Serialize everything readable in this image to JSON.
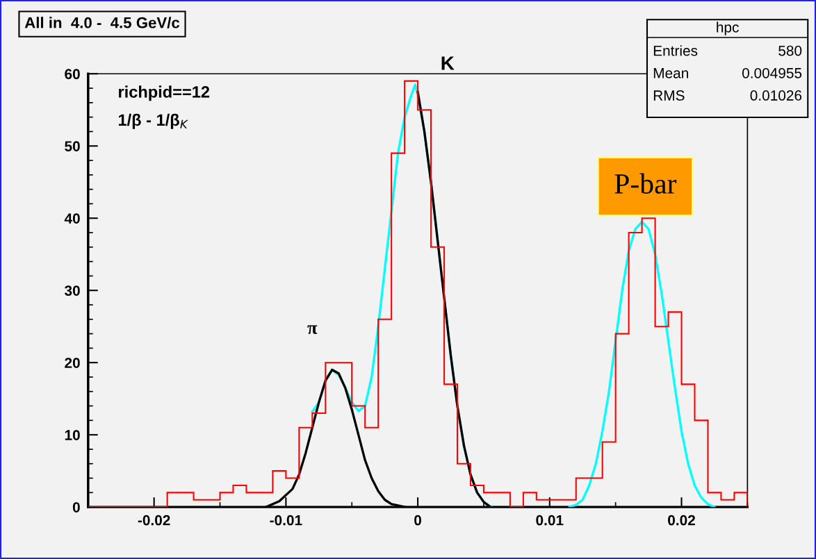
{
  "chart_data": {
    "type": "histogram",
    "title": "All in  4.0 -  4.5 GeV/c",
    "bins": [
      -0.025,
      -0.024,
      -0.023,
      -0.022,
      -0.021,
      -0.02,
      -0.019,
      -0.018,
      -0.017,
      -0.016,
      -0.015,
      -0.014,
      -0.013,
      -0.012,
      -0.011,
      -0.01,
      -0.009,
      -0.008,
      -0.007,
      -0.006,
      -0.005,
      -0.004,
      -0.003,
      -0.002,
      -0.001,
      0,
      0.001,
      0.002,
      0.003,
      0.004,
      0.005,
      0.006,
      0.007,
      0.008,
      0.009,
      0.01,
      0.011,
      0.012,
      0.013,
      0.014,
      0.015,
      0.016,
      0.017,
      0.018,
      0.019,
      0.02,
      0.021,
      0.022,
      0.023,
      0.024,
      0.025
    ],
    "values": [
      0,
      0,
      0,
      0,
      0,
      0,
      2,
      2,
      1,
      1,
      2,
      3,
      2,
      2,
      5,
      4,
      11,
      13,
      20,
      20,
      14,
      11,
      26,
      49,
      59,
      55,
      36,
      17,
      6,
      3,
      2,
      2,
      0,
      2,
      1,
      1,
      1,
      4,
      4,
      9,
      24,
      38,
      40,
      25,
      27,
      17,
      12,
      2,
      1,
      2
    ],
    "color": "#ff0000",
    "series": [
      {
        "type": "line",
        "color": "#00ffff",
        "x": [
          -0.008,
          -0.0075,
          -0.007,
          -0.0065,
          -0.006,
          -0.0055,
          -0.005,
          -0.0045,
          -0.004,
          -0.0035,
          -0.003,
          -0.0025,
          -0.002,
          -0.0015,
          -0.001,
          -0.0005,
          -0.0002,
          0,
          0.0005,
          0.001,
          0.0015,
          0.002,
          0.0025,
          0.003,
          0.0035,
          0.004,
          0.0045,
          0.005,
          0.0055
        ],
        "values": [
          13.2,
          14.5,
          17.5,
          19,
          18.3,
          16.5,
          14.5,
          13.3,
          14,
          18,
          25,
          33,
          41,
          49,
          54,
          57,
          58.5,
          57,
          52,
          45,
          37,
          29,
          21,
          14,
          8.5,
          4.5,
          2,
          0.7,
          0.1
        ]
      },
      {
        "type": "line",
        "color": "#00ffff",
        "x": [
          0.0115,
          0.012,
          0.0125,
          0.013,
          0.0135,
          0.014,
          0.0145,
          0.015,
          0.0155,
          0.016,
          0.0165,
          0.017,
          0.0175,
          0.018,
          0.0185,
          0.019,
          0.0195,
          0.02,
          0.0205,
          0.021,
          0.0215,
          0.022,
          0.0225
        ],
        "values": [
          0,
          0.3,
          1,
          3,
          6,
          10.5,
          16,
          23,
          30,
          35.5,
          38.5,
          39.5,
          38.5,
          35,
          29.5,
          23,
          16.5,
          10.5,
          6,
          3,
          1.3,
          0.4,
          0
        ]
      },
      {
        "type": "line",
        "color": "#000000",
        "x": [
          -0.0115,
          -0.0105,
          -0.0095,
          -0.009,
          -0.0085,
          -0.008,
          -0.0075,
          -0.007,
          -0.0065,
          -0.006,
          -0.0055,
          -0.005,
          -0.0045,
          -0.004,
          -0.0035,
          -0.003,
          -0.0025,
          -0.002,
          -0.001
        ],
        "values": [
          0,
          0.8,
          2.5,
          4.5,
          7.5,
          11,
          14.5,
          17.5,
          19,
          18.5,
          16.5,
          13.5,
          10,
          6.5,
          4,
          2.2,
          1,
          0.4,
          0
        ]
      },
      {
        "type": "line",
        "color": "#000000",
        "x": [
          0,
          0.0005,
          0.001,
          0.0015,
          0.002,
          0.0025,
          0.003,
          0.0035,
          0.004,
          0.0045,
          0.005,
          0.0055
        ],
        "values": [
          57.5,
          52,
          45,
          37,
          29,
          21,
          14,
          8.5,
          4.5,
          2,
          0.7,
          0
        ]
      }
    ],
    "xlim": [
      -0.025,
      0.025
    ],
    "xticks": [
      -0.02,
      -0.01,
      0,
      0.01,
      0.02
    ],
    "ylim": [
      0,
      60
    ],
    "yticks": [
      0,
      10,
      20,
      30,
      40,
      50,
      60
    ],
    "annotations": [
      "richpid==12",
      "1/β - 1/β$_{K}$",
      "K",
      "π",
      "P-bar",
      "hpc",
      "Entries",
      "580",
      "Mean",
      "0.004955",
      "RMS",
      "0.01026"
    ],
    "grid": false,
    "legend": false
  }
}
